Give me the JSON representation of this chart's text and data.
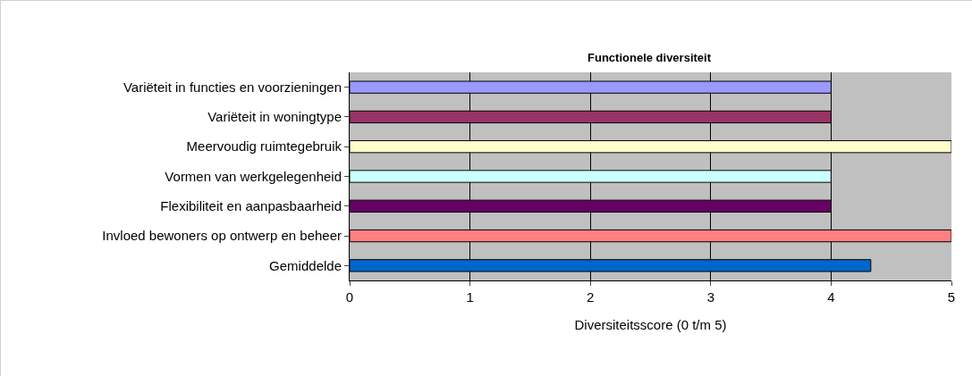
{
  "chart_data": {
    "type": "bar",
    "orientation": "horizontal",
    "title": "Functionele diversiteit",
    "xlabel": "Diversiteitsscore (0 t/m 5)",
    "categories": [
      "Variëteit in functies en voorzieningen",
      "Variëteit in woningtype",
      "Meervoudig ruimtegebruik",
      "Vormen van werkgelegenheid",
      "Flexibiliteit en aanpasbaarheid",
      "Invloed bewoners op ontwerp en beheer",
      "Gemiddelde"
    ],
    "values": [
      4,
      4,
      5,
      4,
      4,
      5,
      4.33
    ],
    "colors": [
      "#9999ff",
      "#993366",
      "#ffffcc",
      "#ccffff",
      "#660066",
      "#ff8080",
      "#0066cc"
    ],
    "xlim": [
      0,
      5
    ],
    "xticks": [
      0,
      1,
      2,
      3,
      4,
      5
    ],
    "grid": "x"
  }
}
